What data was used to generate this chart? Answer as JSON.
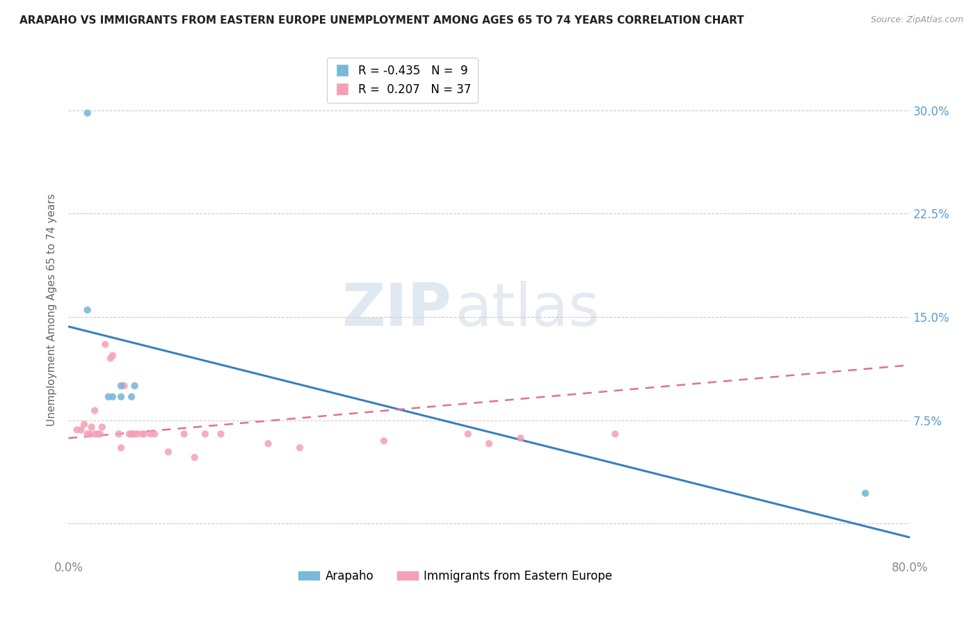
{
  "title": "ARAPAHO VS IMMIGRANTS FROM EASTERN EUROPE UNEMPLOYMENT AMONG AGES 65 TO 74 YEARS CORRELATION CHART",
  "source": "Source: ZipAtlas.com",
  "ylabel": "Unemployment Among Ages 65 to 74 years",
  "ytick_values": [
    0.0,
    0.075,
    0.15,
    0.225,
    0.3
  ],
  "ytick_labels": [
    "",
    "7.5%",
    "15.0%",
    "22.5%",
    "30.0%"
  ],
  "xmin": 0.0,
  "xmax": 0.8,
  "ymin": -0.025,
  "ymax": 0.335,
  "arapaho_color": "#7ab8d9",
  "eastern_europe_color": "#f4a0b5",
  "arapaho_R": -0.435,
  "arapaho_N": 9,
  "eastern_europe_R": 0.207,
  "eastern_europe_N": 37,
  "arapaho_line_color": "#3a7fc1",
  "eastern_europe_line_color": "#e07090",
  "watermark_zip": "ZIP",
  "watermark_atlas": "atlas",
  "legend_label_1": "Arapaho",
  "legend_label_2": "Immigrants from Eastern Europe",
  "arapaho_x": [
    0.018,
    0.018,
    0.038,
    0.042,
    0.05,
    0.05,
    0.06,
    0.063,
    0.758
  ],
  "arapaho_y": [
    0.298,
    0.155,
    0.092,
    0.092,
    0.092,
    0.1,
    0.092,
    0.1,
    0.022
  ],
  "eastern_europe_x": [
    0.008,
    0.012,
    0.015,
    0.018,
    0.02,
    0.022,
    0.025,
    0.025,
    0.028,
    0.03,
    0.032,
    0.035,
    0.04,
    0.042,
    0.048,
    0.05,
    0.053,
    0.058,
    0.06,
    0.062,
    0.065,
    0.07,
    0.072,
    0.078,
    0.082,
    0.095,
    0.11,
    0.12,
    0.13,
    0.145,
    0.19,
    0.22,
    0.3,
    0.38,
    0.4,
    0.43,
    0.52
  ],
  "eastern_europe_y": [
    0.068,
    0.068,
    0.072,
    0.065,
    0.065,
    0.07,
    0.065,
    0.082,
    0.065,
    0.065,
    0.07,
    0.13,
    0.12,
    0.122,
    0.065,
    0.055,
    0.1,
    0.065,
    0.065,
    0.065,
    0.065,
    0.065,
    0.065,
    0.065,
    0.065,
    0.052,
    0.065,
    0.048,
    0.065,
    0.065,
    0.058,
    0.055,
    0.06,
    0.065,
    0.058,
    0.062,
    0.065
  ],
  "arapaho_trend_x0": 0.0,
  "arapaho_trend_y0": 0.143,
  "arapaho_trend_x1": 0.8,
  "arapaho_trend_y1": -0.01,
  "eastern_europe_trend_x0": 0.0,
  "eastern_europe_trend_y0": 0.062,
  "eastern_europe_trend_x1": 0.8,
  "eastern_europe_trend_y1": 0.115
}
